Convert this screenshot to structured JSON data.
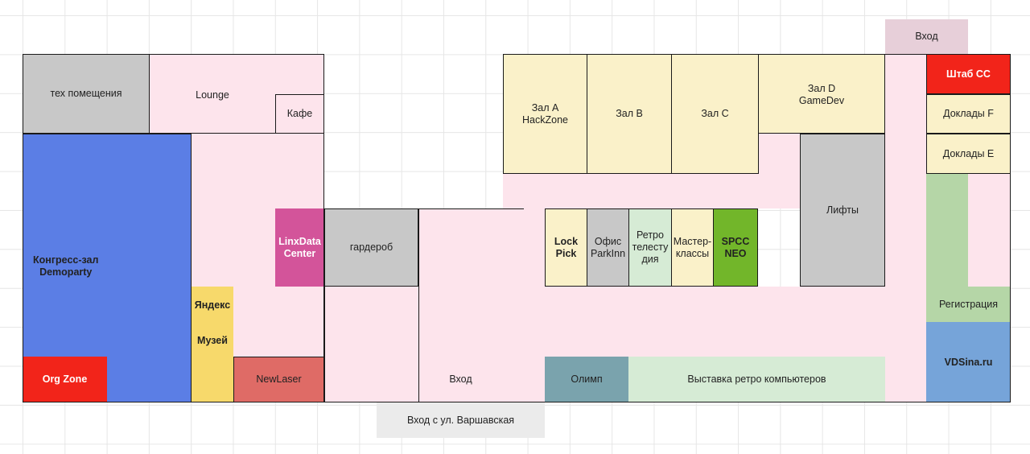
{
  "colors": {
    "pink": "#fde4ec",
    "gray": "#c8c8c8",
    "blue": "#5b7ee5",
    "red": "#f2241a",
    "yellow_room": "#faf1c9",
    "green_light": "#d6ebd5",
    "green_mid": "#b5d6a7",
    "green_dark": "#72b62a",
    "magenta": "#d3549a",
    "teal": "#7aa3ad",
    "salmon": "#df6b66",
    "gold": "#f7d96b",
    "sky": "#76a4d9",
    "mauve": "#e7cfd9",
    "light_gray": "#ebebeb"
  },
  "zones": [
    {
      "id": "tech",
      "label": "тех помещения"
    },
    {
      "id": "lounge",
      "label": "Lounge"
    },
    {
      "id": "cafe",
      "label": "Кафе"
    },
    {
      "id": "congress",
      "label": "Конгресс-зал\nDemoparty"
    },
    {
      "id": "orgzone",
      "label": "Org Zone"
    },
    {
      "id": "linxdata",
      "label": "LinxData\nCenter"
    },
    {
      "id": "garderob",
      "label": "гардероб"
    },
    {
      "id": "yandex",
      "label": "Яндекс"
    },
    {
      "id": "museum",
      "label": "Музей"
    },
    {
      "id": "newlaser",
      "label": "NewLaser"
    },
    {
      "id": "entrance_main",
      "label": "Вход"
    },
    {
      "id": "entrance_street",
      "label": "Вход  с ул. Варшавская"
    },
    {
      "id": "hall_a",
      "label": "Зал A\nHackZone"
    },
    {
      "id": "hall_b",
      "label": "Зал B"
    },
    {
      "id": "hall_c",
      "label": "Зал C"
    },
    {
      "id": "hall_d",
      "label": "Зал D\nGameDev"
    },
    {
      "id": "lifts",
      "label": "Лифты"
    },
    {
      "id": "lockpick",
      "label": "Lock\nPick"
    },
    {
      "id": "parkinn",
      "label": "Офис\nParkInn"
    },
    {
      "id": "retro_tv",
      "label": "Ретро\nтелесту\nдия"
    },
    {
      "id": "masterclass",
      "label": "Мастер-\nклассы"
    },
    {
      "id": "spcc",
      "label": "SPCC\nNEO"
    },
    {
      "id": "olimp",
      "label": "Олимп"
    },
    {
      "id": "retro_expo",
      "label": "Выставка ретро компьютеров"
    },
    {
      "id": "entrance_top",
      "label": "Вход"
    },
    {
      "id": "staff",
      "label": "Штаб CC"
    },
    {
      "id": "talks_f",
      "label": "Доклады F"
    },
    {
      "id": "talks_e",
      "label": "Доклады E"
    },
    {
      "id": "registration",
      "label": "Регистрация"
    },
    {
      "id": "vdsina",
      "label": "VDSina.ru"
    }
  ]
}
